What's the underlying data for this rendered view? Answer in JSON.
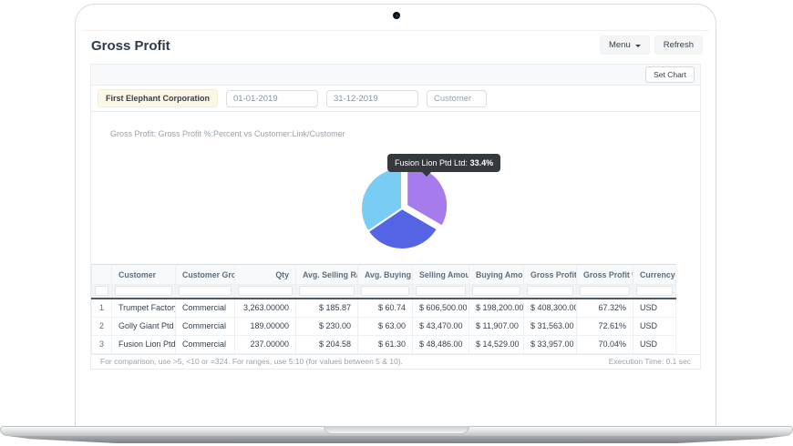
{
  "header": {
    "title": "Gross Profit",
    "menu_label": "Menu",
    "refresh_label": "Refresh"
  },
  "toolbar": {
    "set_chart_label": "Set Chart"
  },
  "filters": {
    "company": "First Elephant Corporation",
    "from_date": "01-01-2019",
    "to_date": "31-12-2019",
    "customer_placeholder": "Customer"
  },
  "chart_data": {
    "type": "pie",
    "title": "Gross Profit: Gross Profit %:Percent vs Customer:Link/Customer",
    "legend_position": "none",
    "slices": [
      {
        "label": "Fusion Lion Ptd Ltd",
        "gross_profit_pct": 70.04,
        "share_pct": 33.4,
        "color": "#a67cec",
        "exploded": true
      },
      {
        "label": "Trumpet Factory Ltd",
        "gross_profit_pct": 67.32,
        "share_pct": 32.1,
        "color": "#5464e4",
        "exploded": false
      },
      {
        "label": "Golly Giant Ptd Ltd",
        "gross_profit_pct": 72.61,
        "share_pct": 34.5,
        "color": "#79cdf4",
        "exploded": false
      }
    ],
    "tooltip": {
      "label": "Fusion Lion Ptd Ltd:",
      "value": "33.4%"
    }
  },
  "table": {
    "columns": [
      {
        "key": "idx",
        "label": "",
        "align": "center"
      },
      {
        "key": "customer",
        "label": "Customer",
        "align": "left"
      },
      {
        "key": "group",
        "label": "Customer Group",
        "align": "left"
      },
      {
        "key": "qty",
        "label": "Qty",
        "align": "right"
      },
      {
        "key": "avg_selling_rate",
        "label": "Avg. Selling Rate",
        "align": "right"
      },
      {
        "key": "avg_buying_rate",
        "label": "Avg. Buying Rate",
        "align": "right"
      },
      {
        "key": "selling_amount",
        "label": "Selling Amount",
        "align": "right"
      },
      {
        "key": "buying_amount",
        "label": "Buying Amount",
        "align": "right"
      },
      {
        "key": "gross_profit",
        "label": "Gross Profit",
        "align": "right"
      },
      {
        "key": "gross_profit_pct",
        "label": "Gross Profit %",
        "align": "right"
      },
      {
        "key": "currency",
        "label": "Currency",
        "align": "left"
      }
    ],
    "rows": [
      {
        "idx": "1",
        "customer": "Trumpet Factory Ltd",
        "group": "Commercial",
        "qty": "3,263.00000",
        "avg_selling_rate": "$ 185.87",
        "avg_buying_rate": "$ 60.74",
        "selling_amount": "$ 606,500.00",
        "buying_amount": "$ 198,200.00",
        "gross_profit": "$ 408,300.00",
        "gross_profit_pct": "67.32%",
        "currency": "USD"
      },
      {
        "idx": "2",
        "customer": "Golly Giant Ptd Ltd",
        "group": "Commercial",
        "qty": "189.00000",
        "avg_selling_rate": "$ 230.00",
        "avg_buying_rate": "$ 63.00",
        "selling_amount": "$ 43,470.00",
        "buying_amount": "$ 11,907.00",
        "gross_profit": "$ 31,563.00",
        "gross_profit_pct": "72.61%",
        "currency": "USD"
      },
      {
        "idx": "3",
        "customer": "Fusion Lion Ptd Ltd",
        "group": "Commercial",
        "qty": "237.00000",
        "avg_selling_rate": "$ 204.58",
        "avg_buying_rate": "$ 61.30",
        "selling_amount": "$ 48,486.00",
        "buying_amount": "$ 14,529.00",
        "gross_profit": "$ 33,957.00",
        "gross_profit_pct": "70.04%",
        "currency": "USD"
      }
    ]
  },
  "footer": {
    "hint": "For comparison, use >5, <10 or =324. For ranges, use 5:10 (for values between 5 & 10).",
    "execution_time": "Execution Time: 0.1 sec"
  }
}
